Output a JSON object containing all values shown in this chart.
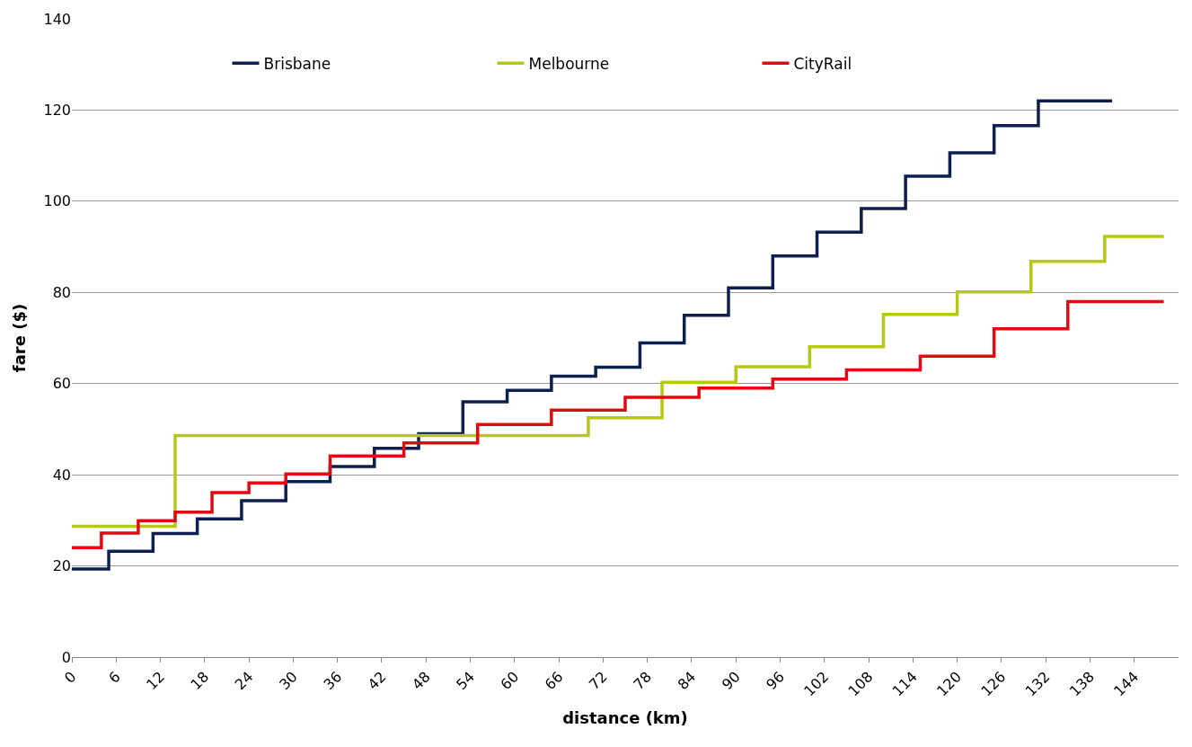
{
  "chart_data": {
    "type": "step",
    "xlabel": "distance (km)",
    "ylabel": "fare ($)",
    "xlim": [
      0,
      150
    ],
    "xticks": [
      0,
      6,
      12,
      18,
      24,
      30,
      36,
      42,
      48,
      54,
      60,
      66,
      72,
      78,
      84,
      90,
      96,
      102,
      108,
      114,
      120,
      126,
      132,
      138,
      144
    ],
    "ylim": [
      0,
      140
    ],
    "yticks": [
      0,
      20,
      40,
      60,
      80,
      100,
      120,
      140
    ],
    "grid": "y",
    "legend": "top",
    "marker": "none",
    "line_style": "solid",
    "series": [
      {
        "name": "Brisbane",
        "color": "#0d1f4f",
        "x": [
          0,
          5,
          11,
          17,
          23,
          29,
          35,
          41,
          47,
          53,
          59,
          65,
          71,
          77,
          83,
          89,
          95,
          101,
          107,
          113,
          119,
          125,
          131,
          141
        ],
        "values": [
          19.3,
          23.2,
          27.1,
          30.3,
          34.3,
          38.5,
          41.8,
          45.8,
          49,
          56,
          58.5,
          61.6,
          63.6,
          68.9,
          75,
          81,
          88,
          93.2,
          98.4,
          105.5,
          110.6,
          116.6,
          122,
          122
        ]
      },
      {
        "name": "Melbourne",
        "color": "#b5c912",
        "x": [
          0,
          14,
          70,
          80,
          90,
          100,
          110,
          120,
          130,
          140,
          148
        ],
        "values": [
          28.7,
          48.6,
          52.5,
          60.3,
          63.7,
          68.1,
          75.2,
          80.1,
          86.8,
          92.3,
          92.3
        ]
      },
      {
        "name": "CityRail",
        "color": "#e00a12",
        "x": [
          0,
          4,
          9,
          14,
          19,
          24,
          29,
          35,
          45,
          55,
          65,
          75,
          85,
          95,
          105,
          115,
          125,
          135,
          148
        ],
        "values": [
          24,
          27.2,
          29.9,
          31.8,
          36.1,
          38.2,
          40.2,
          44.1,
          47,
          51,
          54.2,
          57,
          59,
          61,
          63,
          66,
          72,
          78,
          78
        ]
      }
    ]
  }
}
